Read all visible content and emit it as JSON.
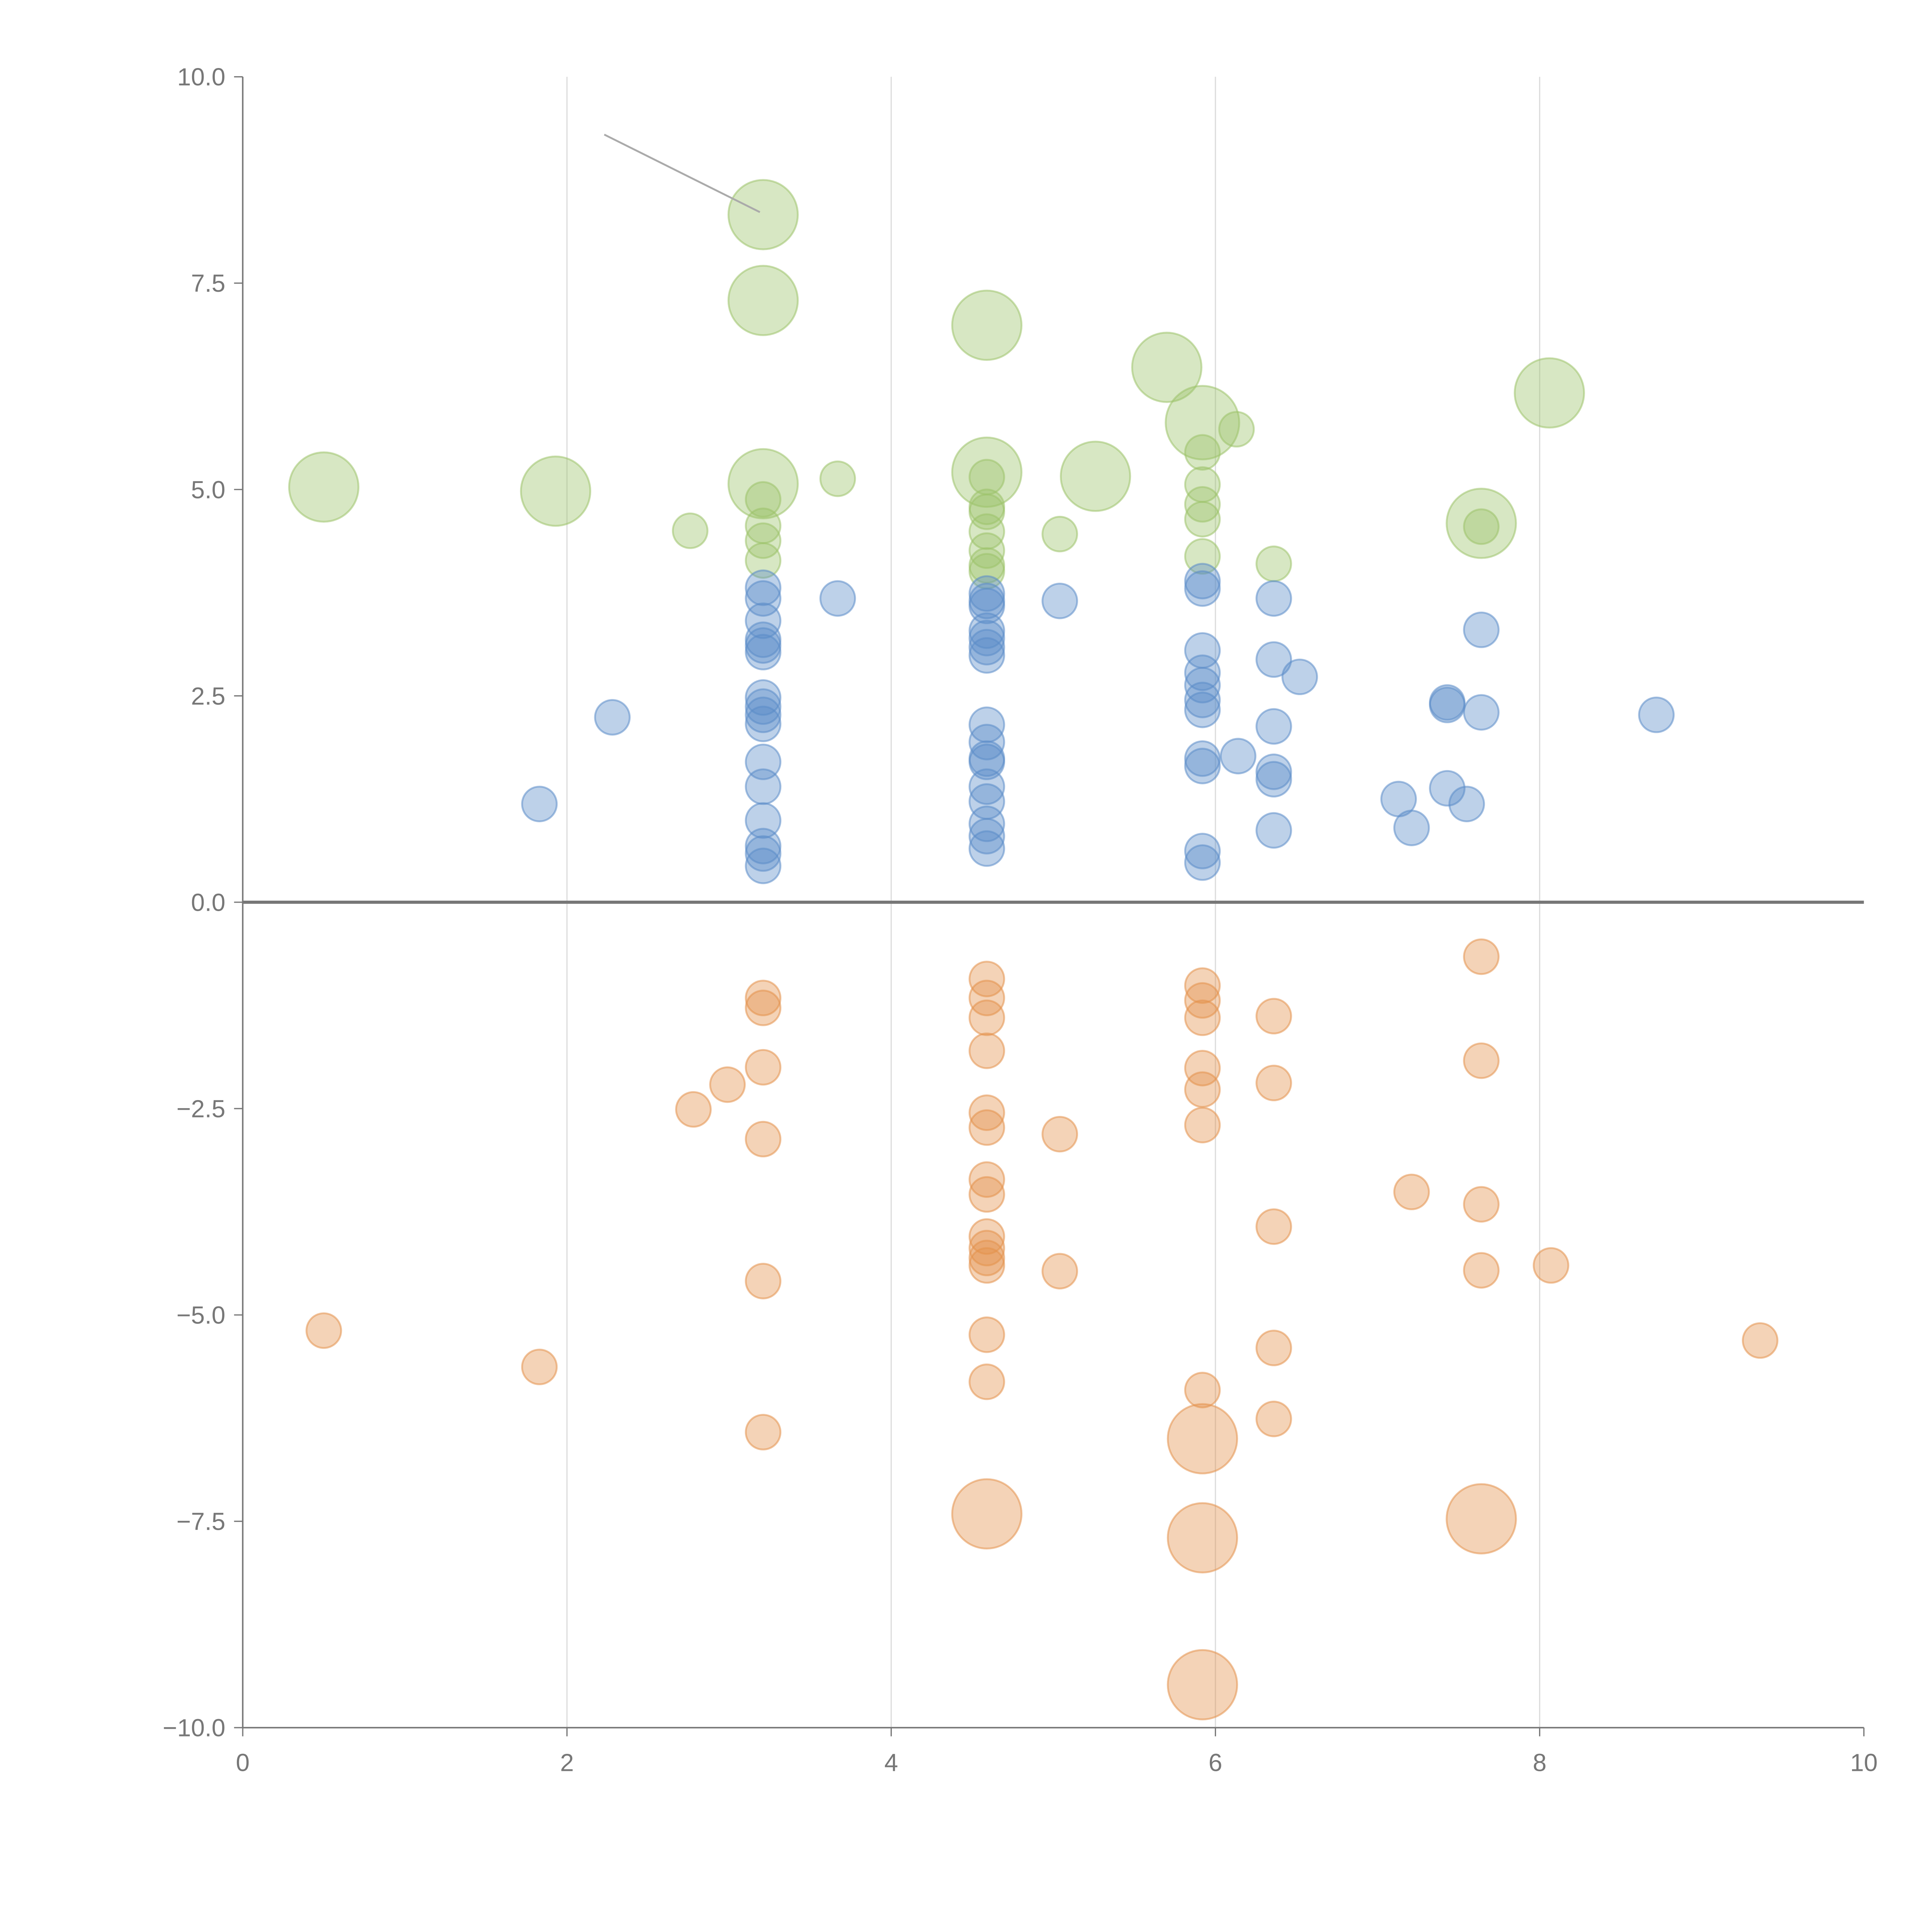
{
  "chart_data": {
    "type": "scatter",
    "title": "",
    "xlabel": "",
    "ylabel": "",
    "xlim": [
      0,
      10
    ],
    "ylim": [
      -10,
      10
    ],
    "xticks": [
      "0",
      "2",
      "4",
      "6",
      "8",
      "10"
    ],
    "yticks": [
      "−10.0",
      "−7.5",
      "−5.0",
      "−2.5",
      "0.0",
      "2.5",
      "5.0",
      "7.5",
      "10.0"
    ],
    "grid": "vertical",
    "point_format": [
      "x",
      "y",
      "size"
    ],
    "series": [
      {
        "name": "green",
        "color": "#9cc26a",
        "points": [
          [
            3.21,
            8.33,
            4
          ],
          [
            3.21,
            7.29,
            4
          ],
          [
            4.59,
            6.99,
            4
          ],
          [
            5.7,
            6.48,
            4
          ],
          [
            5.92,
            5.81,
            4.5
          ],
          [
            6.13,
            5.73,
            1
          ],
          [
            8.06,
            6.17,
            4
          ],
          [
            0.5,
            5.03,
            4
          ],
          [
            1.93,
            4.98,
            4
          ],
          [
            3.21,
            5.07,
            4
          ],
          [
            3.67,
            5.13,
            1
          ],
          [
            4.59,
            5.21,
            4
          ],
          [
            5.26,
            5.16,
            4
          ],
          [
            4.59,
            5.15,
            1
          ],
          [
            2.76,
            4.5,
            1
          ],
          [
            3.21,
            4.88,
            1
          ],
          [
            3.21,
            4.56,
            1
          ],
          [
            3.21,
            4.38,
            1
          ],
          [
            3.21,
            4.14,
            1
          ],
          [
            4.59,
            4.79,
            1
          ],
          [
            4.59,
            4.73,
            1
          ],
          [
            4.59,
            4.49,
            1
          ],
          [
            4.59,
            4.26,
            1
          ],
          [
            4.59,
            4.08,
            1
          ],
          [
            4.59,
            4.01,
            1
          ],
          [
            5.04,
            4.46,
            1
          ],
          [
            5.92,
            5.45,
            1
          ],
          [
            5.92,
            5.06,
            1
          ],
          [
            5.92,
            4.82,
            1
          ],
          [
            5.92,
            4.64,
            1
          ],
          [
            5.92,
            4.19,
            1
          ],
          [
            6.36,
            4.1,
            1
          ],
          [
            7.64,
            4.59,
            4
          ],
          [
            7.64,
            4.55,
            1
          ]
        ]
      },
      {
        "name": "blue",
        "color": "#5b8cc8",
        "points": [
          [
            1.83,
            1.19,
            1
          ],
          [
            2.28,
            2.24,
            1
          ],
          [
            3.21,
            3.81,
            1
          ],
          [
            3.21,
            3.68,
            1
          ],
          [
            3.21,
            3.41,
            1
          ],
          [
            3.21,
            3.18,
            1
          ],
          [
            3.21,
            3.11,
            1
          ],
          [
            3.21,
            3.03,
            1
          ],
          [
            3.21,
            2.48,
            1
          ],
          [
            3.21,
            2.37,
            1
          ],
          [
            3.21,
            2.27,
            1
          ],
          [
            3.21,
            2.16,
            1
          ],
          [
            3.21,
            1.7,
            1
          ],
          [
            3.21,
            1.4,
            1
          ],
          [
            3.21,
            0.99,
            1
          ],
          [
            3.21,
            0.68,
            1
          ],
          [
            3.21,
            0.59,
            1
          ],
          [
            3.21,
            0.44,
            1
          ],
          [
            3.67,
            3.68,
            1
          ],
          [
            4.59,
            3.74,
            1
          ],
          [
            4.59,
            3.65,
            1
          ],
          [
            4.59,
            3.59,
            1
          ],
          [
            4.59,
            3.29,
            1
          ],
          [
            4.59,
            3.2,
            1
          ],
          [
            4.59,
            3.09,
            1
          ],
          [
            4.59,
            2.99,
            1
          ],
          [
            4.59,
            2.15,
            1
          ],
          [
            4.59,
            1.94,
            1
          ],
          [
            4.59,
            1.74,
            1
          ],
          [
            4.59,
            1.7,
            1
          ],
          [
            4.59,
            1.4,
            1
          ],
          [
            4.59,
            1.22,
            1
          ],
          [
            4.59,
            0.95,
            1
          ],
          [
            4.59,
            0.8,
            1
          ],
          [
            4.59,
            0.65,
            1
          ],
          [
            5.04,
            3.65,
            1
          ],
          [
            5.92,
            3.89,
            1
          ],
          [
            5.92,
            3.8,
            1
          ],
          [
            5.92,
            3.05,
            1
          ],
          [
            5.92,
            2.78,
            1
          ],
          [
            5.92,
            2.63,
            1
          ],
          [
            5.92,
            2.45,
            1
          ],
          [
            5.92,
            2.33,
            1
          ],
          [
            5.92,
            1.74,
            1
          ],
          [
            5.92,
            1.65,
            1
          ],
          [
            5.92,
            0.62,
            1
          ],
          [
            5.92,
            0.48,
            1
          ],
          [
            6.14,
            1.77,
            1
          ],
          [
            6.36,
            3.68,
            1
          ],
          [
            6.36,
            2.94,
            1
          ],
          [
            6.36,
            2.13,
            1
          ],
          [
            6.36,
            1.58,
            1
          ],
          [
            6.36,
            1.49,
            1
          ],
          [
            6.36,
            0.87,
            1
          ],
          [
            6.52,
            2.73,
            1
          ],
          [
            7.13,
            1.25,
            1
          ],
          [
            7.21,
            0.9,
            1
          ],
          [
            7.43,
            2.42,
            1
          ],
          [
            7.43,
            2.39,
            1
          ],
          [
            7.43,
            1.38,
            1
          ],
          [
            7.55,
            1.19,
            1
          ],
          [
            7.64,
            3.3,
            1
          ],
          [
            7.64,
            2.3,
            1
          ],
          [
            8.72,
            2.27,
            1
          ]
        ]
      },
      {
        "name": "orange",
        "color": "#e4914c",
        "points": [
          [
            0.5,
            -5.19,
            1
          ],
          [
            1.83,
            -5.63,
            1
          ],
          [
            2.78,
            -2.51,
            1
          ],
          [
            2.99,
            -2.21,
            1
          ],
          [
            3.21,
            -1.16,
            1
          ],
          [
            3.21,
            -1.28,
            1
          ],
          [
            3.21,
            -2.0,
            1
          ],
          [
            3.21,
            -2.87,
            1
          ],
          [
            3.21,
            -4.59,
            1
          ],
          [
            3.21,
            -6.42,
            1
          ],
          [
            4.59,
            -0.93,
            1
          ],
          [
            4.59,
            -1.16,
            1
          ],
          [
            4.59,
            -1.4,
            1
          ],
          [
            4.59,
            -1.8,
            1
          ],
          [
            4.59,
            -2.55,
            1
          ],
          [
            4.59,
            -2.73,
            1
          ],
          [
            4.59,
            -3.36,
            1
          ],
          [
            4.59,
            -3.54,
            1
          ],
          [
            4.59,
            -4.05,
            1
          ],
          [
            4.59,
            -4.19,
            1
          ],
          [
            4.59,
            -4.31,
            1
          ],
          [
            4.59,
            -4.4,
            1
          ],
          [
            4.59,
            -5.24,
            1
          ],
          [
            4.59,
            -5.81,
            1
          ],
          [
            4.59,
            -7.41,
            4
          ],
          [
            5.04,
            -2.81,
            1
          ],
          [
            5.04,
            -4.47,
            1
          ],
          [
            5.92,
            -1.01,
            1
          ],
          [
            5.92,
            -1.19,
            1
          ],
          [
            5.92,
            -1.4,
            1
          ],
          [
            5.92,
            -2.01,
            1
          ],
          [
            5.92,
            -2.27,
            1
          ],
          [
            5.92,
            -2.7,
            1
          ],
          [
            5.92,
            -5.91,
            1
          ],
          [
            5.92,
            -6.5,
            4
          ],
          [
            5.92,
            -7.7,
            4
          ],
          [
            5.92,
            -9.48,
            4
          ],
          [
            6.36,
            -1.38,
            1
          ],
          [
            6.36,
            -2.19,
            1
          ],
          [
            6.36,
            -3.93,
            1
          ],
          [
            6.36,
            -5.4,
            1
          ],
          [
            6.36,
            -6.26,
            1
          ],
          [
            7.21,
            -3.51,
            1
          ],
          [
            7.64,
            -0.66,
            1
          ],
          [
            7.64,
            -1.92,
            1
          ],
          [
            7.64,
            -3.66,
            1
          ],
          [
            7.64,
            -4.46,
            1
          ],
          [
            7.64,
            -7.47,
            4
          ],
          [
            8.07,
            -4.4,
            1
          ],
          [
            9.36,
            -5.31,
            1
          ]
        ]
      }
    ],
    "annotation_line": [
      [
        2.23,
        9.3
      ],
      [
        3.19,
        8.36
      ]
    ]
  }
}
